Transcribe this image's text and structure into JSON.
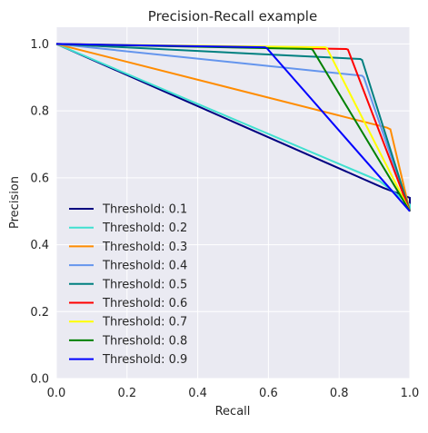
{
  "chart_data": {
    "type": "line",
    "title": "Precision-Recall example",
    "xlabel": "Recall",
    "ylabel": "Precision",
    "xlim": [
      0,
      1
    ],
    "ylim": [
      0,
      1.05
    ],
    "xticks": [
      "0.0",
      "0.2",
      "0.4",
      "0.6",
      "0.8",
      "1.0"
    ],
    "yticks": [
      "0.0",
      "0.2",
      "0.4",
      "0.6",
      "0.8",
      "1.0"
    ],
    "grid": true,
    "legend_position": "lower-left",
    "series": [
      {
        "name": "Threshold: 0.1",
        "color": "#000080",
        "x": [
          0.0,
          0.925,
          1.0,
          1.0
        ],
        "y": [
          1.0,
          0.57,
          0.54,
          0.5
        ]
      },
      {
        "name": "Threshold: 0.2",
        "color": "#40e0d0",
        "x": [
          0.0,
          0.915,
          1.0,
          1.0
        ],
        "y": [
          1.0,
          0.59,
          0.52,
          0.5
        ]
      },
      {
        "name": "Threshold: 0.3",
        "color": "#ff8c00",
        "x": [
          0.0,
          0.935,
          0.945,
          1.0
        ],
        "y": [
          1.0,
          0.75,
          0.745,
          0.5
        ]
      },
      {
        "name": "Threshold: 0.4",
        "color": "#6495ed",
        "x": [
          0.0,
          0.865,
          0.87,
          1.0
        ],
        "y": [
          1.0,
          0.905,
          0.9,
          0.5
        ]
      },
      {
        "name": "Threshold: 0.5",
        "color": "#008080",
        "x": [
          0.0,
          0.86,
          0.865,
          1.0
        ],
        "y": [
          1.0,
          0.955,
          0.952,
          0.5
        ]
      },
      {
        "name": "Threshold: 0.6",
        "color": "#ff0000",
        "x": [
          0.0,
          0.82,
          0.825,
          1.0
        ],
        "y": [
          1.0,
          0.985,
          0.983,
          0.5
        ]
      },
      {
        "name": "Threshold: 0.7",
        "color": "#ffff00",
        "x": [
          0.0,
          0.76,
          0.765,
          1.0
        ],
        "y": [
          1.0,
          0.99,
          0.988,
          0.5
        ]
      },
      {
        "name": "Threshold: 0.8",
        "color": "#008000",
        "x": [
          0.0,
          0.72,
          0.725,
          1.0
        ],
        "y": [
          1.0,
          0.985,
          0.983,
          0.5
        ]
      },
      {
        "name": "Threshold: 0.9",
        "color": "#0000ff",
        "x": [
          0.0,
          0.59,
          0.595,
          1.0
        ],
        "y": [
          1.0,
          0.99,
          0.988,
          0.5
        ]
      }
    ]
  }
}
